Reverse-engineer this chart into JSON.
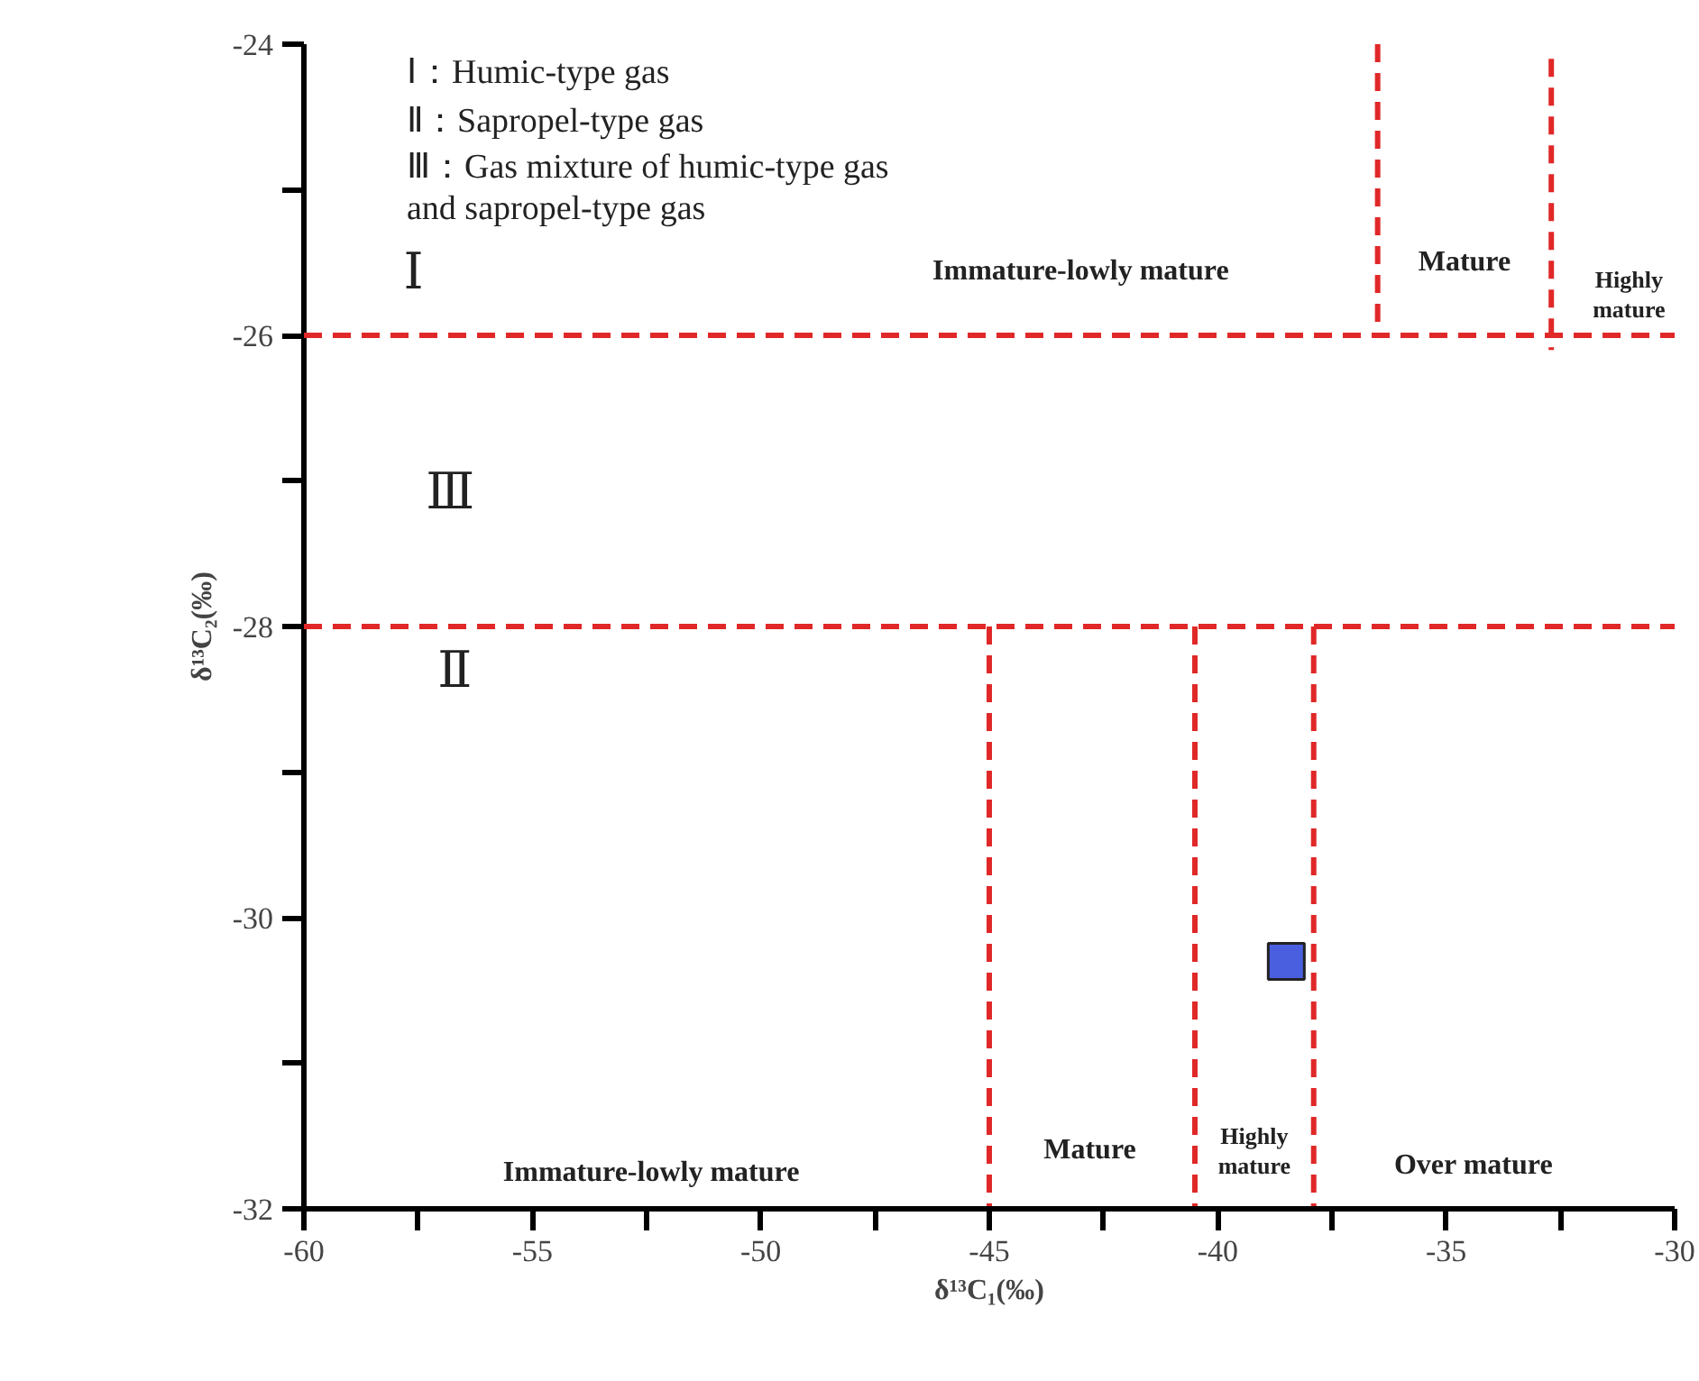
{
  "chart_data": {
    "type": "scatter",
    "xlabel": "δ¹³C₁(‰)",
    "ylabel": "δ¹³C₂(‰)",
    "xlim": [
      -60,
      -30
    ],
    "ylim": [
      -32,
      -24
    ],
    "xticks": [
      -60,
      {
        "value": -57.5,
        "label": null
      },
      -55,
      {
        "value": -52.5,
        "label": null
      },
      -50,
      {
        "value": -47.5,
        "label": null
      },
      -45,
      {
        "value": -42.5,
        "label": null
      },
      -40,
      {
        "value": -37.5,
        "label": null
      },
      -35,
      {
        "value": -32.5,
        "label": null
      },
      -30
    ],
    "yticks": [
      -32,
      {
        "value": -31,
        "label": null
      },
      -30,
      {
        "value": -29,
        "label": null
      },
      -28,
      {
        "value": -27,
        "label": null
      },
      -26,
      {
        "value": -25,
        "label": null
      },
      -24
    ],
    "grid": false,
    "series": [
      {
        "marker": "square",
        "color": "#4a5fe0",
        "x": [
          -38.5
        ],
        "values": [
          -30.3
        ]
      },
      {
        "type": "line",
        "line_style": "dashed",
        "marker": "none",
        "color": "#e02828",
        "x": [
          -45,
          -45
        ],
        "values": [
          -28,
          -32
        ]
      },
      {
        "type": "line",
        "line_style": "dashed",
        "marker": "none",
        "color": "#e02828",
        "x": [
          -40.5,
          -40.5
        ],
        "values": [
          -28,
          -32
        ]
      },
      {
        "type": "line",
        "line_style": "dashed",
        "marker": "none",
        "color": "#e02828",
        "x": [
          -37.9,
          -37.9
        ],
        "values": [
          -28,
          -32
        ]
      },
      {
        "type": "line",
        "line_style": "dashed",
        "marker": "none",
        "color": "#e02828",
        "x": [
          -36.5,
          -36.5
        ],
        "values": [
          -24,
          -26
        ]
      },
      {
        "type": "line",
        "line_style": "dashed",
        "marker": "none",
        "color": "#e02828",
        "x": [
          -32.7,
          -32.7
        ],
        "values": [
          -24.1,
          -26.1
        ]
      }
    ],
    "ref_lines": [
      {
        "axis": "y",
        "value": -26,
        "color": "#e02828",
        "line_style": "dashed"
      },
      {
        "axis": "y",
        "value": -28,
        "color": "#e02828",
        "line_style": "dashed"
      }
    ],
    "annotations": [
      "Ⅰ：Humic-type gas",
      "Ⅱ：Sapropel-type gas",
      "Ⅲ：Gas mixture of humic-type gas\n      and sapropel-type gas",
      "Ⅰ",
      "Ⅲ",
      "Ⅱ",
      "Immature-lowly mature",
      "Mature",
      "Highly\nmature",
      "Immature-lowly mature",
      "Mature",
      "Highly\nmature",
      "Over mature"
    ]
  }
}
